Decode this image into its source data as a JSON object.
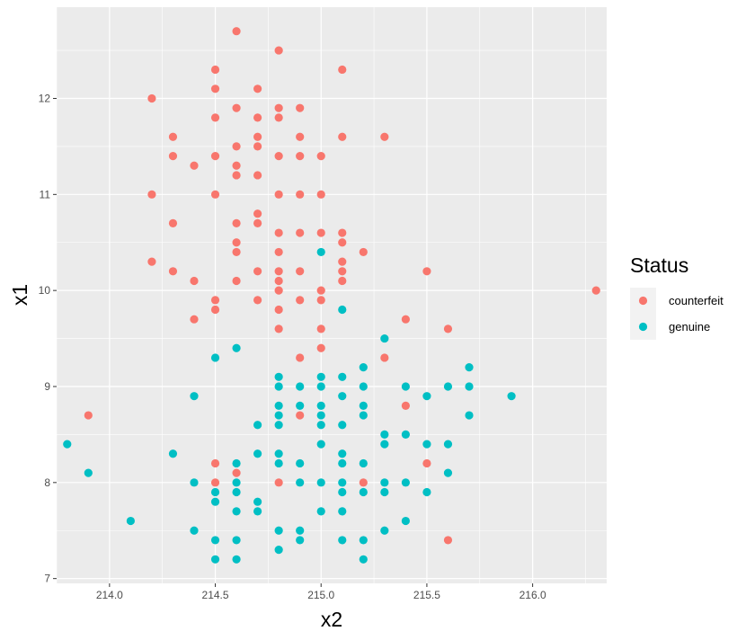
{
  "chart_data": {
    "type": "scatter",
    "xlabel": "x2",
    "ylabel": "x1",
    "xlim": [
      213.75,
      216.35
    ],
    "ylim": [
      6.95,
      12.95
    ],
    "x_ticks": [
      214.0,
      214.5,
      215.0,
      215.5,
      216.0
    ],
    "x_tick_labels": [
      "214.0",
      "214.5",
      "215.0",
      "215.5",
      "216.0"
    ],
    "y_ticks": [
      7,
      8,
      9,
      10,
      11,
      12
    ],
    "y_tick_labels": [
      "7",
      "8",
      "9",
      "10",
      "11",
      "12"
    ],
    "grid": true,
    "legend": {
      "title": "Status",
      "position": "right"
    },
    "colors": {
      "counterfeit": "#F8766D",
      "genuine": "#00BFC4",
      "panel": "#EBEBEB",
      "grid": "#FFFFFF"
    },
    "series": [
      {
        "name": "counterfeit",
        "color": "#F8766D",
        "points": [
          [
            214.6,
            12.7
          ],
          [
            214.8,
            12.5
          ],
          [
            214.5,
            12.3
          ],
          [
            215.1,
            12.3
          ],
          [
            214.5,
            12.1
          ],
          [
            214.7,
            12.1
          ],
          [
            214.2,
            12.0
          ],
          [
            214.6,
            11.9
          ],
          [
            214.8,
            11.9
          ],
          [
            214.9,
            11.9
          ],
          [
            214.5,
            11.8
          ],
          [
            214.7,
            11.8
          ],
          [
            214.8,
            11.8
          ],
          [
            214.3,
            11.6
          ],
          [
            214.7,
            11.6
          ],
          [
            214.9,
            11.6
          ],
          [
            215.1,
            11.6
          ],
          [
            215.3,
            11.6
          ],
          [
            214.6,
            11.5
          ],
          [
            214.7,
            11.5
          ],
          [
            214.3,
            11.4
          ],
          [
            214.5,
            11.4
          ],
          [
            214.8,
            11.4
          ],
          [
            214.9,
            11.4
          ],
          [
            215.0,
            11.4
          ],
          [
            214.4,
            11.3
          ],
          [
            214.6,
            11.3
          ],
          [
            214.6,
            11.2
          ],
          [
            214.7,
            11.2
          ],
          [
            214.2,
            11.0
          ],
          [
            214.5,
            11.0
          ],
          [
            214.8,
            11.0
          ],
          [
            214.9,
            11.0
          ],
          [
            215.0,
            11.0
          ],
          [
            214.7,
            10.8
          ],
          [
            214.3,
            10.7
          ],
          [
            214.6,
            10.7
          ],
          [
            214.7,
            10.7
          ],
          [
            214.8,
            10.6
          ],
          [
            214.9,
            10.6
          ],
          [
            215.0,
            10.6
          ],
          [
            215.1,
            10.6
          ],
          [
            214.6,
            10.5
          ],
          [
            215.1,
            10.5
          ],
          [
            214.6,
            10.4
          ],
          [
            214.8,
            10.4
          ],
          [
            215.2,
            10.4
          ],
          [
            214.2,
            10.3
          ],
          [
            215.1,
            10.3
          ],
          [
            214.3,
            10.2
          ],
          [
            214.7,
            10.2
          ],
          [
            214.8,
            10.2
          ],
          [
            214.9,
            10.2
          ],
          [
            215.1,
            10.2
          ],
          [
            215.5,
            10.2
          ],
          [
            214.4,
            10.1
          ],
          [
            214.6,
            10.1
          ],
          [
            214.8,
            10.1
          ],
          [
            215.1,
            10.1
          ],
          [
            214.8,
            10.0
          ],
          [
            215.0,
            10.0
          ],
          [
            216.3,
            10.0
          ],
          [
            214.5,
            9.9
          ],
          [
            214.7,
            9.9
          ],
          [
            214.9,
            9.9
          ],
          [
            215.0,
            9.9
          ],
          [
            214.5,
            9.8
          ],
          [
            214.8,
            9.8
          ],
          [
            214.4,
            9.7
          ],
          [
            215.4,
            9.7
          ],
          [
            214.8,
            9.6
          ],
          [
            215.0,
            9.6
          ],
          [
            215.6,
            9.6
          ],
          [
            215.0,
            9.4
          ],
          [
            214.9,
            9.3
          ],
          [
            215.3,
            9.3
          ],
          [
            215.4,
            8.8
          ],
          [
            213.9,
            8.7
          ],
          [
            214.9,
            8.7
          ],
          [
            214.5,
            8.2
          ],
          [
            215.5,
            8.2
          ],
          [
            214.6,
            8.1
          ],
          [
            214.5,
            8.0
          ],
          [
            214.8,
            8.0
          ],
          [
            215.2,
            8.0
          ],
          [
            215.6,
            7.4
          ]
        ]
      },
      {
        "name": "genuine",
        "color": "#00BFC4",
        "points": [
          [
            215.0,
            10.4
          ],
          [
            215.1,
            9.8
          ],
          [
            215.3,
            9.5
          ],
          [
            214.6,
            9.4
          ],
          [
            214.5,
            9.3
          ],
          [
            215.2,
            9.2
          ],
          [
            215.7,
            9.2
          ],
          [
            214.8,
            9.1
          ],
          [
            215.0,
            9.1
          ],
          [
            215.1,
            9.1
          ],
          [
            214.8,
            9.0
          ],
          [
            214.9,
            9.0
          ],
          [
            215.0,
            9.0
          ],
          [
            215.2,
            9.0
          ],
          [
            215.4,
            9.0
          ],
          [
            215.6,
            9.0
          ],
          [
            215.7,
            9.0
          ],
          [
            214.4,
            8.9
          ],
          [
            215.1,
            8.9
          ],
          [
            215.5,
            8.9
          ],
          [
            215.9,
            8.9
          ],
          [
            214.8,
            8.8
          ],
          [
            214.9,
            8.8
          ],
          [
            215.0,
            8.8
          ],
          [
            215.2,
            8.8
          ],
          [
            214.8,
            8.7
          ],
          [
            215.0,
            8.7
          ],
          [
            215.2,
            8.7
          ],
          [
            215.7,
            8.7
          ],
          [
            214.7,
            8.6
          ],
          [
            214.8,
            8.6
          ],
          [
            215.0,
            8.6
          ],
          [
            215.1,
            8.6
          ],
          [
            215.3,
            8.5
          ],
          [
            215.4,
            8.5
          ],
          [
            213.8,
            8.4
          ],
          [
            215.0,
            8.4
          ],
          [
            215.3,
            8.4
          ],
          [
            215.5,
            8.4
          ],
          [
            215.6,
            8.4
          ],
          [
            214.3,
            8.3
          ],
          [
            214.7,
            8.3
          ],
          [
            214.8,
            8.3
          ],
          [
            215.1,
            8.3
          ],
          [
            214.6,
            8.2
          ],
          [
            214.8,
            8.2
          ],
          [
            214.9,
            8.2
          ],
          [
            215.1,
            8.2
          ],
          [
            215.2,
            8.2
          ],
          [
            213.9,
            8.1
          ],
          [
            215.6,
            8.1
          ],
          [
            214.4,
            8.0
          ],
          [
            214.6,
            8.0
          ],
          [
            214.9,
            8.0
          ],
          [
            215.0,
            8.0
          ],
          [
            215.1,
            8.0
          ],
          [
            215.3,
            8.0
          ],
          [
            215.4,
            8.0
          ],
          [
            214.5,
            7.9
          ],
          [
            214.6,
            7.9
          ],
          [
            215.1,
            7.9
          ],
          [
            215.2,
            7.9
          ],
          [
            215.3,
            7.9
          ],
          [
            215.5,
            7.9
          ],
          [
            214.5,
            7.8
          ],
          [
            214.7,
            7.8
          ],
          [
            214.6,
            7.7
          ],
          [
            214.7,
            7.7
          ],
          [
            215.0,
            7.7
          ],
          [
            215.1,
            7.7
          ],
          [
            214.1,
            7.6
          ],
          [
            215.4,
            7.6
          ],
          [
            214.4,
            7.5
          ],
          [
            214.8,
            7.5
          ],
          [
            214.9,
            7.5
          ],
          [
            215.3,
            7.5
          ],
          [
            214.5,
            7.4
          ],
          [
            214.6,
            7.4
          ],
          [
            214.9,
            7.4
          ],
          [
            215.1,
            7.4
          ],
          [
            215.2,
            7.4
          ],
          [
            214.8,
            7.3
          ],
          [
            214.5,
            7.2
          ],
          [
            214.6,
            7.2
          ],
          [
            215.2,
            7.2
          ]
        ]
      }
    ]
  }
}
